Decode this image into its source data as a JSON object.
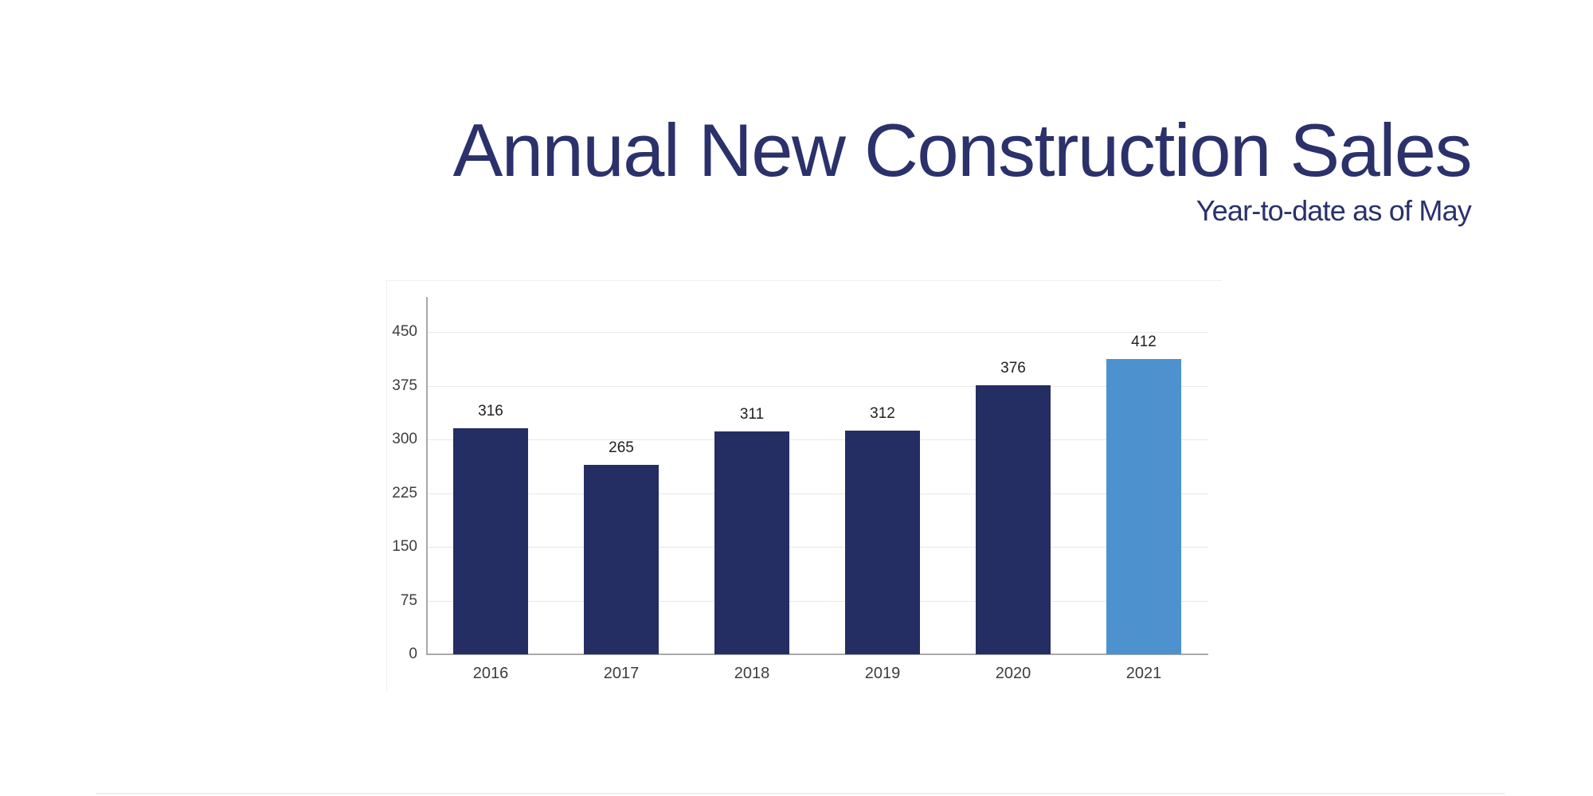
{
  "header": {
    "title": "Annual New Construction Sales",
    "subtitle": "Year-to-date as of May",
    "text_color": "#2a316b"
  },
  "chart_data": {
    "type": "bar",
    "title": "Annual New Construction Sales",
    "subtitle": "Year-to-date as of May",
    "categories": [
      "2016",
      "2017",
      "2018",
      "2019",
      "2020",
      "2021"
    ],
    "values": [
      316,
      265,
      311,
      312,
      376,
      412
    ],
    "value_labels": [
      "316",
      "265",
      "311",
      "312",
      "376",
      "412"
    ],
    "yticks": [
      0,
      75,
      150,
      225,
      300,
      375,
      450
    ],
    "ylim": [
      0,
      500
    ],
    "grid": true,
    "legend": "none",
    "xlabel": "",
    "ylabel": "",
    "highlight_index": 5,
    "colors": {
      "bar_default": "#242e63",
      "bar_highlight": "#4d92cf",
      "gridline": "#e9e9e9",
      "axis_line": "#a9a9a9",
      "tick_text": "#3d3d3d",
      "value_text": "#202020"
    }
  }
}
